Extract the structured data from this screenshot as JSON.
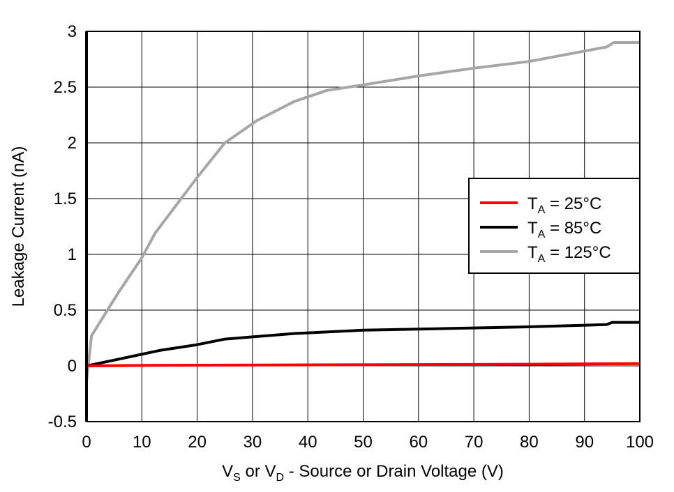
{
  "chart_data": {
    "type": "line",
    "title": "",
    "xlabel": {
      "parts": [
        "V",
        "S",
        " or V",
        "D",
        " - Source or Drain Voltage (V)"
      ]
    },
    "ylabel": "Leakage Current (nA)",
    "xlim": [
      0,
      100
    ],
    "ylim": [
      -0.5,
      3
    ],
    "xticks": [
      0,
      10,
      20,
      30,
      40,
      50,
      60,
      70,
      80,
      90,
      100
    ],
    "yticks": [
      -0.5,
      0,
      0.5,
      1,
      1.5,
      2,
      2.5,
      3
    ],
    "ytick_labels": [
      "-0.5",
      "0",
      "0.5",
      "1",
      "1.5",
      "2",
      "2.5",
      "3"
    ],
    "grid": true,
    "legend_position": "right",
    "series": [
      {
        "name": "TA = 25°C",
        "label_main": "T",
        "label_sub": "A",
        "label_rest": " = 25°C",
        "color": "#ff0000",
        "x": [
          0,
          12,
          50,
          80,
          100
        ],
        "y": [
          0,
          0.005,
          0.01,
          0.015,
          0.02
        ]
      },
      {
        "name": "TA = 85°C",
        "label_main": "T",
        "label_sub": "A",
        "label_rest": " = 85°C",
        "color": "#000000",
        "x": [
          0,
          5.8,
          13.4,
          20,
          25,
          37.5,
          50,
          60,
          80,
          94,
          95,
          100
        ],
        "y": [
          0,
          0.06,
          0.14,
          0.19,
          0.24,
          0.29,
          0.32,
          0.33,
          0.35,
          0.37,
          0.39,
          0.39
        ]
      },
      {
        "name": "TA = 125°C",
        "label_main": "T",
        "label_sub": "A",
        "label_rest": " = 125°C",
        "color": "#a6a6a6",
        "x": [
          0,
          0.9,
          5.8,
          10,
          12.4,
          20,
          25,
          30.8,
          37.5,
          43.4,
          50,
          60,
          70,
          80,
          94,
          95.3,
          100
        ],
        "y": [
          -0.14,
          0.27,
          0.66,
          0.97,
          1.19,
          1.69,
          2.0,
          2.2,
          2.37,
          2.47,
          2.52,
          2.6,
          2.67,
          2.73,
          2.86,
          2.9,
          2.9
        ]
      }
    ]
  }
}
